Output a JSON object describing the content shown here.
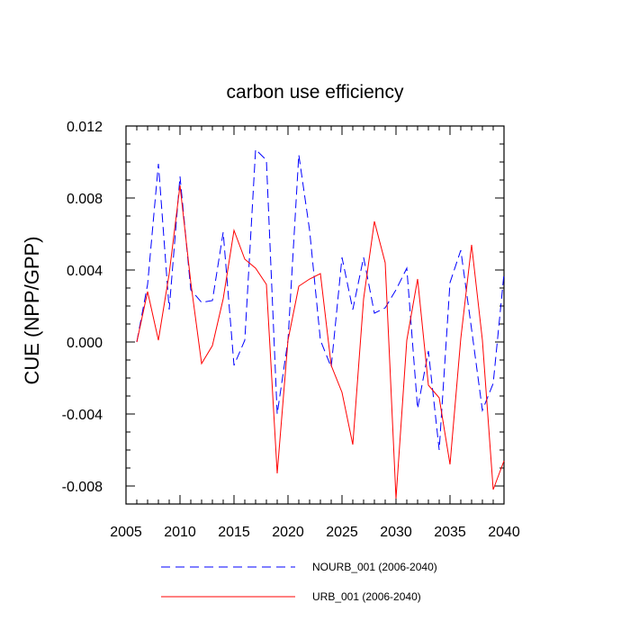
{
  "chart_data": {
    "type": "line",
    "title": "carbon use efficiency",
    "xlabel": "",
    "ylabel": "CUE  (NPP/GPP)",
    "xlim": [
      2005,
      2040
    ],
    "ylim": [
      -0.009,
      0.012
    ],
    "xticks": [
      2005,
      2010,
      2015,
      2020,
      2025,
      2030,
      2035,
      2040
    ],
    "xtick_labels": [
      "2005",
      "2010",
      "2015",
      "2020",
      "2025",
      "2030",
      "2035",
      "2040"
    ],
    "yticks": [
      -0.008,
      -0.004,
      0.0,
      0.004,
      0.008,
      0.012
    ],
    "ytick_labels": [
      "-0.008",
      "-0.004",
      "0.000",
      "0.004",
      "0.008",
      "0.012"
    ],
    "grid": false,
    "legend_position": "bottom",
    "x": [
      2006,
      2007,
      2008,
      2009,
      2010,
      2011,
      2012,
      2013,
      2014,
      2015,
      2016,
      2017,
      2018,
      2019,
      2020,
      2021,
      2022,
      2023,
      2024,
      2025,
      2026,
      2027,
      2028,
      2029,
      2030,
      2031,
      2032,
      2033,
      2034,
      2035,
      2036,
      2037,
      2038,
      2039,
      2040
    ],
    "series": [
      {
        "name": "NOURB_001 (2006-2040)",
        "color": "#0000ff",
        "dash": "dashed",
        "values": [
          0.0,
          0.0032,
          0.0099,
          0.0018,
          0.0092,
          0.0029,
          0.0022,
          0.0023,
          0.0061,
          -0.0013,
          0.0001,
          0.0107,
          0.0101,
          -0.004,
          0.0001,
          0.0104,
          0.0062,
          0.0001,
          -0.0014,
          0.0047,
          0.0018,
          0.0047,
          0.0016,
          0.0019,
          0.0029,
          0.0041,
          -0.0037,
          -0.0005,
          -0.006,
          0.0033,
          0.0051,
          0.0007,
          -0.0038,
          -0.0023,
          0.0038
        ]
      },
      {
        "name": "URB_001 (2006-2040)",
        "color": "#ff0000",
        "dash": "solid",
        "values": [
          0.0,
          0.0028,
          0.0001,
          0.0038,
          0.0087,
          0.0033,
          -0.0012,
          -0.0002,
          0.0024,
          0.0062,
          0.0046,
          0.0041,
          0.0032,
          -0.0073,
          0.0001,
          0.0031,
          0.0035,
          0.0038,
          -0.0013,
          -0.0028,
          -0.0057,
          0.0024,
          0.0067,
          0.0044,
          -0.0087,
          0.0001,
          0.0035,
          -0.0024,
          -0.0031,
          -0.0068,
          0.0002,
          0.0054,
          0.0001,
          -0.0082,
          -0.0066
        ]
      }
    ]
  }
}
